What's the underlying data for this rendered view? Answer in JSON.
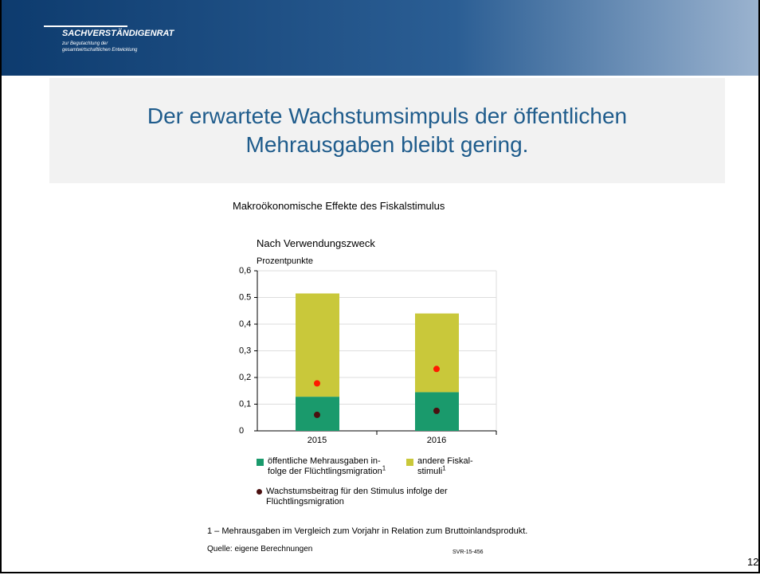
{
  "header": {
    "org": "SACHVERSTÄNDIGENRAT",
    "line1": "zur Begutachtung der",
    "line2": "gesamtwirtschaftlichen Entwicklung"
  },
  "slide_title": [
    "Der erwartete Wachstumsimpuls der öffentlichen",
    "Mehrausgaben bleibt gering."
  ],
  "slide_number": "12",
  "chart_data": {
    "type": "bar",
    "stacked": true,
    "title": "Makroökonomische Effekte des Fiskalstimulus",
    "subtitle": "Nach Verwendungszweck",
    "y_label": "Prozentpunkte",
    "categories": [
      "2015",
      "2016"
    ],
    "series": [
      {
        "name": "öffentliche Mehrausgaben in-folge der Flüchtlingsmigration",
        "note_marker": "1",
        "color": "#1a9a6c",
        "values": [
          0.128,
          0.145
        ]
      },
      {
        "name": "andere Fiskal-stimuli",
        "note_marker": "1",
        "color": "#c9c83a",
        "values": [
          0.387,
          0.295
        ]
      }
    ],
    "points": [
      {
        "name": "Wachstumsbeitrag für den Stimulus infolge der Flüchtlingsmigration",
        "color": "#4a1010",
        "values": [
          0.06,
          0.075
        ]
      },
      {
        "color": "#ff1a00",
        "values": [
          0.178,
          0.232
        ]
      }
    ],
    "ylim": [
      0,
      0.6
    ],
    "yticks": [
      0,
      {
        "value": 0.1,
        "label": "0,1"
      },
      {
        "value": 0.2,
        "label": "0,2"
      },
      {
        "value": 0.3,
        "label": "0,3"
      },
      {
        "value": 0.4,
        "label": "0,4"
      },
      0.5,
      {
        "value": 0.6,
        "label": "0,6"
      }
    ],
    "grid": true,
    "footnote": "1 – Mehrausgaben im Vergleich zum Vorjahr in Relation zum Bruttoinlandsprodukt.",
    "source": "Quelle: eigene Berechnungen",
    "code": "SVR-15-456"
  }
}
